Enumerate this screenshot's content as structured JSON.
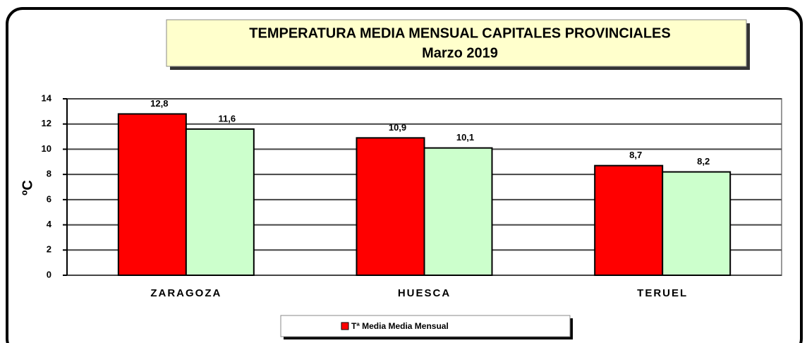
{
  "chart_data": {
    "type": "bar",
    "title": [
      "TEMPERATURA MEDIA MENSUAL  CAPITALES PROVINCIALES",
      "Marzo 2019"
    ],
    "y_label": "ºC",
    "categories": [
      "ZARAGOZA",
      "HUESCA",
      "TERUEL"
    ],
    "series": [
      {
        "name": "Tª Media Media Mensual",
        "color": "#ff0000",
        "values": [
          12.8,
          10.9,
          8.7
        ],
        "value_labels": [
          "12,8",
          "10,9",
          "8,7"
        ]
      },
      {
        "color": "#ccffcc",
        "values": [
          11.6,
          10.1,
          8.2
        ],
        "value_labels": [
          "11,6",
          "10,1",
          "8,2"
        ]
      }
    ],
    "ylim": [
      0,
      14
    ],
    "yticks": [
      0,
      2,
      4,
      6,
      8,
      10,
      12,
      14
    ],
    "grid": true
  }
}
